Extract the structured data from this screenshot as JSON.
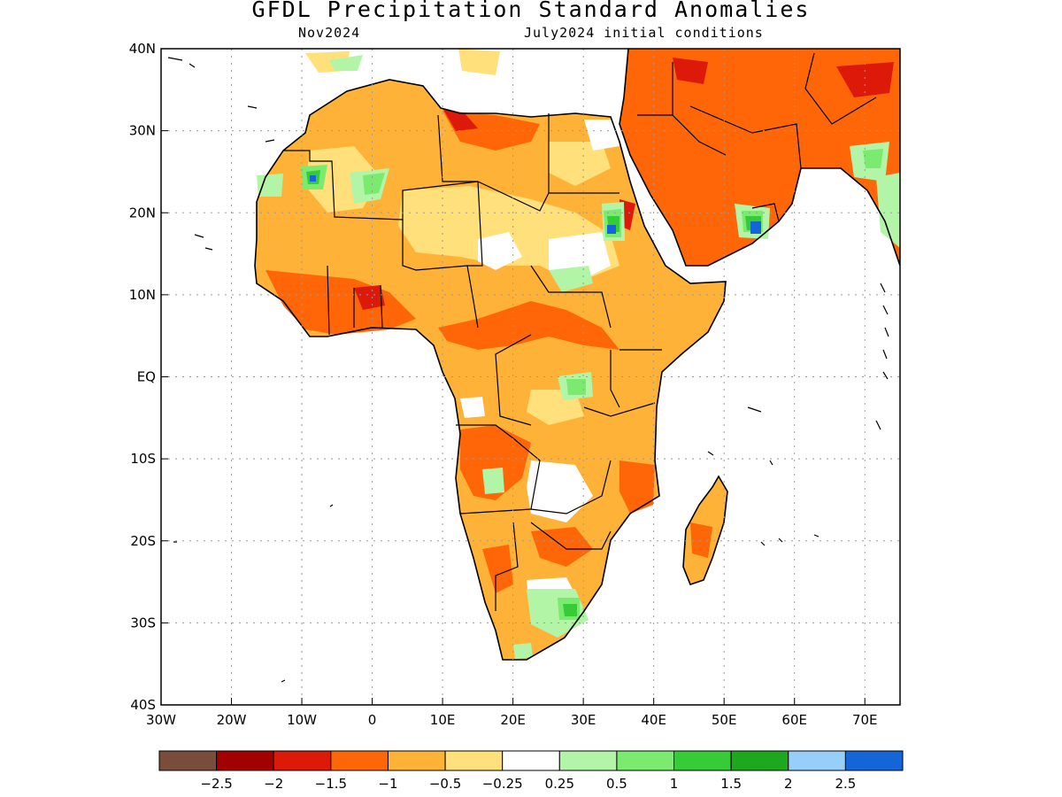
{
  "title": "GFDL Precipitation Standard Anomalies",
  "subtitle_left": "Nov2024",
  "subtitle_right": "July2024 initial conditions",
  "map": {
    "lon_range": [
      -30,
      75
    ],
    "lat_range": [
      -40,
      40
    ],
    "lon_ticks": [
      {
        "value": -30,
        "label": "30W"
      },
      {
        "value": -20,
        "label": "20W"
      },
      {
        "value": -10,
        "label": "10W"
      },
      {
        "value": 0,
        "label": "0"
      },
      {
        "value": 10,
        "label": "10E"
      },
      {
        "value": 20,
        "label": "20E"
      },
      {
        "value": 30,
        "label": "30E"
      },
      {
        "value": 40,
        "label": "40E"
      },
      {
        "value": 50,
        "label": "50E"
      },
      {
        "value": 60,
        "label": "60E"
      },
      {
        "value": 70,
        "label": "70E"
      }
    ],
    "lat_ticks": [
      {
        "value": 40,
        "label": "40N"
      },
      {
        "value": 30,
        "label": "30N"
      },
      {
        "value": 20,
        "label": "20N"
      },
      {
        "value": 10,
        "label": "10N"
      },
      {
        "value": 0,
        "label": "EQ"
      },
      {
        "value": -10,
        "label": "10S"
      },
      {
        "value": -20,
        "label": "20S"
      },
      {
        "value": -30,
        "label": "30S"
      },
      {
        "value": -40,
        "label": "40S"
      }
    ],
    "grid": "dotted"
  },
  "colorbar": {
    "colors": [
      "#7a4c3c",
      "#a30000",
      "#dd1a0a",
      "#ff6608",
      "#ffb238",
      "#ffe07a",
      "#ffffff",
      "#b2f5a6",
      "#7aeb6e",
      "#36cc38",
      "#1ea81e",
      "#96d0fa",
      "#1466d8"
    ],
    "labels": [
      "-2.5",
      "-2",
      "-1.5",
      "-1",
      "-0.5",
      "-0.25",
      "0.25",
      "0.5",
      "1",
      "1.5",
      "2",
      "2.5"
    ]
  }
}
